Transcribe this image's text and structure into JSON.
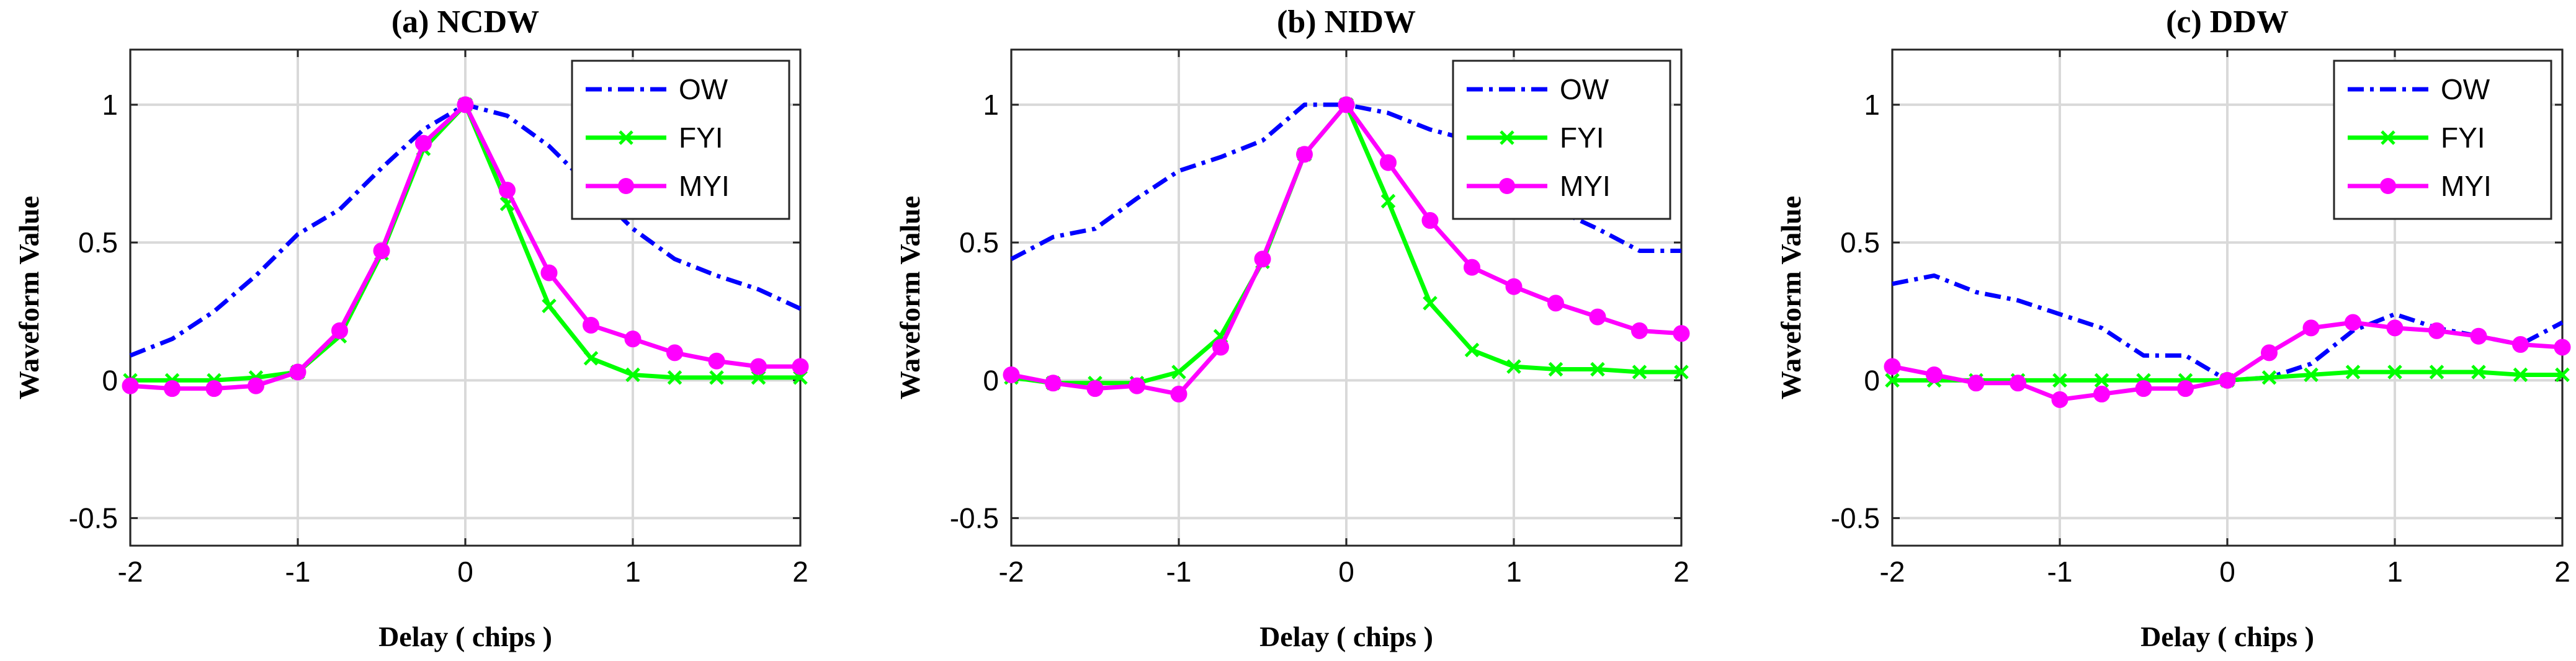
{
  "chart_data": [
    {
      "type": "line",
      "title": "(a) NCDW",
      "xlabel": "Delay ( chips )",
      "ylabel": "Waveform Value",
      "xlim": [
        -2,
        2
      ],
      "ylim": [
        -0.6,
        1.2
      ],
      "xticks": [
        "-2",
        "-1",
        "0",
        "1",
        "2"
      ],
      "yticks": [
        "-0.5",
        "0",
        "0.5",
        "1"
      ],
      "grid": true,
      "legend_position": "top-right",
      "series": [
        {
          "name": "OW",
          "color": "#0000ff",
          "style": "dashdot",
          "marker": "none",
          "x": [
            -2,
            -1.75,
            -1.5,
            -1.25,
            -1,
            -0.75,
            -0.5,
            -0.25,
            0,
            0.25,
            0.5,
            0.75,
            1,
            1.25,
            1.5,
            1.75,
            2
          ],
          "y": [
            0.09,
            0.15,
            0.25,
            0.38,
            0.53,
            0.62,
            0.77,
            0.91,
            1.0,
            0.96,
            0.85,
            0.7,
            0.55,
            0.44,
            0.38,
            0.33,
            0.26
          ]
        },
        {
          "name": "FYI",
          "color": "#00ff00",
          "style": "solid",
          "marker": "x",
          "x": [
            -2,
            -1.75,
            -1.5,
            -1.25,
            -1,
            -0.75,
            -0.5,
            -0.25,
            0,
            0.25,
            0.5,
            0.75,
            1,
            1.25,
            1.5,
            1.75,
            2
          ],
          "y": [
            0.0,
            0.0,
            0.0,
            0.01,
            0.03,
            0.16,
            0.46,
            0.84,
            1.0,
            0.64,
            0.27,
            0.08,
            0.02,
            0.01,
            0.01,
            0.01,
            0.01
          ]
        },
        {
          "name": "MYI",
          "color": "#ff00ff",
          "style": "solid",
          "marker": "circle",
          "x": [
            -2,
            -1.75,
            -1.5,
            -1.25,
            -1,
            -0.75,
            -0.5,
            -0.25,
            0,
            0.25,
            0.5,
            0.75,
            1,
            1.25,
            1.5,
            1.75,
            2
          ],
          "y": [
            -0.02,
            -0.03,
            -0.03,
            -0.02,
            0.03,
            0.18,
            0.47,
            0.86,
            1.0,
            0.69,
            0.39,
            0.2,
            0.15,
            0.1,
            0.07,
            0.05,
            0.05
          ]
        }
      ]
    },
    {
      "type": "line",
      "title": "(b) NIDW",
      "xlabel": "Delay ( chips )",
      "ylabel": "Waveform Value",
      "xlim": [
        -2,
        2
      ],
      "ylim": [
        -0.6,
        1.2
      ],
      "xticks": [
        "-2",
        "-1",
        "0",
        "1",
        "2"
      ],
      "yticks": [
        "-0.5",
        "0",
        "0.5",
        "1"
      ],
      "grid": true,
      "legend_position": "top-right",
      "series": [
        {
          "name": "OW",
          "color": "#0000ff",
          "style": "dashdot",
          "marker": "none",
          "x": [
            -2,
            -1.75,
            -1.5,
            -1.25,
            -1,
            -0.75,
            -0.5,
            -0.25,
            0,
            0.25,
            0.5,
            0.75,
            1,
            1.25,
            1.5,
            1.75,
            2
          ],
          "y": [
            0.44,
            0.52,
            0.55,
            0.66,
            0.76,
            0.81,
            0.87,
            1.0,
            1.0,
            0.97,
            0.91,
            0.87,
            0.76,
            0.62,
            0.55,
            0.47,
            0.47
          ]
        },
        {
          "name": "FYI",
          "color": "#00ff00",
          "style": "solid",
          "marker": "x",
          "x": [
            -2,
            -1.75,
            -1.5,
            -1.25,
            -1,
            -0.75,
            -0.5,
            -0.25,
            0,
            0.25,
            0.5,
            0.75,
            1,
            1.25,
            1.5,
            1.75,
            2
          ],
          "y": [
            0.01,
            -0.01,
            -0.01,
            -0.01,
            0.03,
            0.16,
            0.43,
            0.82,
            1.0,
            0.65,
            0.28,
            0.11,
            0.05,
            0.04,
            0.04,
            0.03,
            0.03
          ]
        },
        {
          "name": "MYI",
          "color": "#ff00ff",
          "style": "solid",
          "marker": "circle",
          "x": [
            -2,
            -1.75,
            -1.5,
            -1.25,
            -1,
            -0.75,
            -0.5,
            -0.25,
            0,
            0.25,
            0.5,
            0.75,
            1,
            1.25,
            1.5,
            1.75,
            2
          ],
          "y": [
            0.02,
            -0.01,
            -0.03,
            -0.02,
            -0.05,
            0.12,
            0.44,
            0.82,
            1.0,
            0.79,
            0.58,
            0.41,
            0.34,
            0.28,
            0.23,
            0.18,
            0.17
          ]
        }
      ]
    },
    {
      "type": "line",
      "title": "(c) DDW",
      "xlabel": "Delay ( chips )",
      "ylabel": "Waveform Value",
      "xlim": [
        -2,
        2
      ],
      "ylim": [
        -0.6,
        1.2
      ],
      "xticks": [
        "-2",
        "-1",
        "0",
        "1",
        "2"
      ],
      "yticks": [
        "-0.5",
        "0",
        "0.5",
        "1"
      ],
      "grid": true,
      "legend_position": "top-right",
      "series": [
        {
          "name": "OW",
          "color": "#0000ff",
          "style": "dashdot",
          "marker": "none",
          "x": [
            -2,
            -1.75,
            -1.5,
            -1.25,
            -1,
            -0.75,
            -0.5,
            -0.25,
            0,
            0.25,
            0.5,
            0.75,
            1,
            1.25,
            1.5,
            1.75,
            2
          ],
          "y": [
            0.35,
            0.38,
            0.32,
            0.29,
            0.24,
            0.19,
            0.09,
            0.09,
            0.0,
            0.01,
            0.06,
            0.18,
            0.24,
            0.19,
            0.16,
            0.13,
            0.21
          ]
        },
        {
          "name": "FYI",
          "color": "#00ff00",
          "style": "solid",
          "marker": "x",
          "x": [
            -2,
            -1.75,
            -1.5,
            -1.25,
            -1,
            -0.75,
            -0.5,
            -0.25,
            0,
            0.25,
            0.5,
            0.75,
            1,
            1.25,
            1.5,
            1.75,
            2
          ],
          "y": [
            0.0,
            0.0,
            0.0,
            0.0,
            0.0,
            0.0,
            0.0,
            0.0,
            0.0,
            0.01,
            0.02,
            0.03,
            0.03,
            0.03,
            0.03,
            0.02,
            0.02
          ]
        },
        {
          "name": "MYI",
          "color": "#ff00ff",
          "style": "solid",
          "marker": "circle",
          "x": [
            -2,
            -1.75,
            -1.5,
            -1.25,
            -1,
            -0.75,
            -0.5,
            -0.25,
            0,
            0.25,
            0.5,
            0.75,
            1,
            1.25,
            1.5,
            1.75,
            2
          ],
          "y": [
            0.05,
            0.02,
            -0.01,
            -0.01,
            -0.07,
            -0.05,
            -0.03,
            -0.03,
            0.0,
            0.1,
            0.19,
            0.21,
            0.19,
            0.18,
            0.16,
            0.13,
            0.12
          ]
        }
      ]
    }
  ]
}
